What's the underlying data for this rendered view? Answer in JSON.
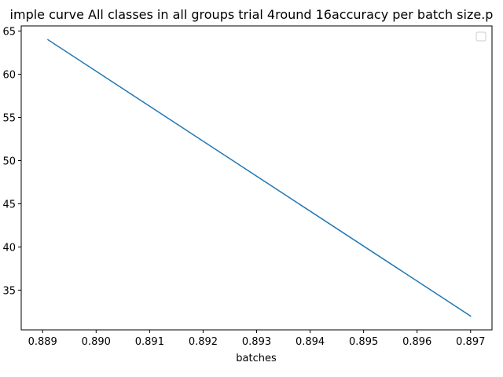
{
  "chart_data": {
    "type": "line",
    "title": "imple curve All classes in all groups trial 4round 16accuracy per batch size.p",
    "xlabel": "batches",
    "ylabel": "",
    "x_ticks": [
      "0.889",
      "0.890",
      "0.891",
      "0.892",
      "0.893",
      "0.894",
      "0.895",
      "0.896",
      "0.897"
    ],
    "y_ticks": [
      "35",
      "40",
      "45",
      "50",
      "55",
      "60",
      "65"
    ],
    "y_tick_values": [
      35,
      40,
      45,
      50,
      55,
      60,
      65
    ],
    "xlim": [
      0.8886,
      0.8974
    ],
    "ylim": [
      30.4,
      65.6
    ],
    "grid": false,
    "legend": "top-right",
    "series": [
      {
        "color": "#1f77b4",
        "x": [
          0.8891,
          0.897
        ],
        "y": [
          64,
          32
        ]
      }
    ]
  }
}
